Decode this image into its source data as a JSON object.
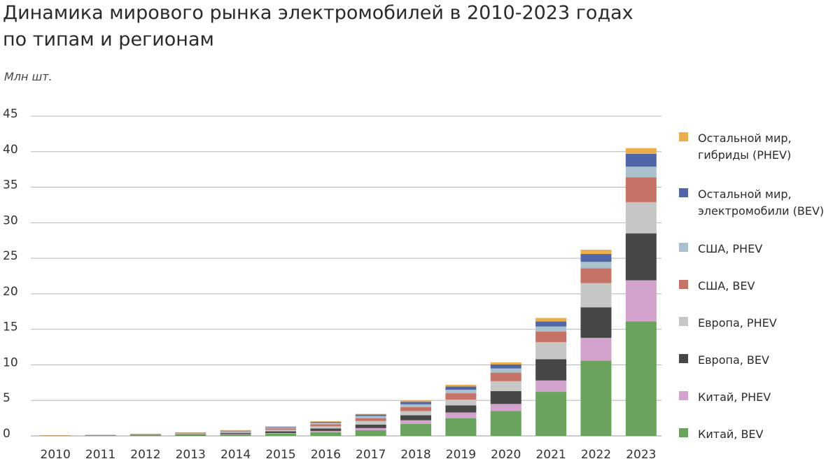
{
  "chart_data": {
    "type": "bar",
    "stacked": true,
    "title_lines": [
      "Динамика мирового рынка электромобилей в 2010-2023 годах",
      "по типам и регионам"
    ],
    "ylabel": "Млн шт.",
    "ylim": [
      0,
      45
    ],
    "yticks": [
      "0",
      "5",
      "10",
      "15",
      "20",
      "25",
      "30",
      "35",
      "40",
      "45"
    ],
    "ytick_values": [
      0,
      5,
      10,
      15,
      20,
      25,
      30,
      35,
      40,
      45
    ],
    "grid": true,
    "legend_position": "right",
    "categories": [
      "2010",
      "2011",
      "2012",
      "2013",
      "2014",
      "2015",
      "2016",
      "2017",
      "2018",
      "2019",
      "2020",
      "2021",
      "2022",
      "2023"
    ],
    "series": [
      {
        "name": "Китай, BEV",
        "color": "#6aa35e",
        "values": [
          0.01,
          0.03,
          0.05,
          0.1,
          0.2,
          0.3,
          0.5,
          0.8,
          1.7,
          2.5,
          3.5,
          6.2,
          10.6,
          16.1
        ]
      },
      {
        "name": "Китай, PHEV",
        "color": "#d3a2cd",
        "values": [
          0.0,
          0.0,
          0.02,
          0.03,
          0.06,
          0.1,
          0.2,
          0.3,
          0.5,
          0.8,
          1.0,
          1.6,
          3.2,
          5.8
        ]
      },
      {
        "name": "Европа, BEV",
        "color": "#474747",
        "values": [
          0.01,
          0.02,
          0.05,
          0.08,
          0.15,
          0.25,
          0.35,
          0.5,
          0.7,
          1.0,
          1.8,
          3.0,
          4.3,
          6.6
        ]
      },
      {
        "name": "Европа, PHEV",
        "color": "#c4c7c4",
        "values": [
          0.0,
          0.01,
          0.03,
          0.07,
          0.1,
          0.2,
          0.3,
          0.5,
          0.6,
          0.8,
          1.4,
          2.4,
          3.4,
          4.4
        ]
      },
      {
        "name": "США, BEV",
        "color": "#c57367",
        "values": [
          0.01,
          0.02,
          0.05,
          0.07,
          0.12,
          0.22,
          0.3,
          0.4,
          0.55,
          0.9,
          1.2,
          1.5,
          2.1,
          3.5
        ]
      },
      {
        "name": "США, PHEV",
        "color": "#a9c1cd",
        "values": [
          0.0,
          0.01,
          0.03,
          0.05,
          0.08,
          0.12,
          0.2,
          0.3,
          0.4,
          0.5,
          0.6,
          0.7,
          0.9,
          1.5
        ]
      },
      {
        "name": "Остальной мир, электромобили (BEV)",
        "color": "#5166a8",
        "values": [
          0.01,
          0.01,
          0.02,
          0.03,
          0.05,
          0.08,
          0.12,
          0.2,
          0.35,
          0.45,
          0.55,
          0.7,
          1.1,
          1.8
        ]
      },
      {
        "name": "Остальной мир, гибриды (PHEV)",
        "color": "#eaae4c",
        "values": [
          0.0,
          0.01,
          0.02,
          0.02,
          0.04,
          0.06,
          0.08,
          0.1,
          0.2,
          0.25,
          0.3,
          0.5,
          0.6,
          0.8
        ]
      }
    ],
    "legend_order": [
      {
        "lines": [
          "Остальной мир,",
          "гибриды (PHEV)"
        ],
        "color": "#eaae4c"
      },
      {
        "lines": [
          "Остальной мир,",
          "электромобили (BEV)"
        ],
        "color": "#5166a8"
      },
      {
        "lines": [
          "США, PHEV"
        ],
        "color": "#a9c1cd"
      },
      {
        "lines": [
          "США, BEV"
        ],
        "color": "#c57367"
      },
      {
        "lines": [
          "Европа, PHEV"
        ],
        "color": "#c4c7c4"
      },
      {
        "lines": [
          "Европа, BEV"
        ],
        "color": "#474747"
      },
      {
        "lines": [
          "Китай, PHEV"
        ],
        "color": "#d3a2cd"
      },
      {
        "lines": [
          "Китай, BEV"
        ],
        "color": "#6aa35e"
      }
    ]
  }
}
